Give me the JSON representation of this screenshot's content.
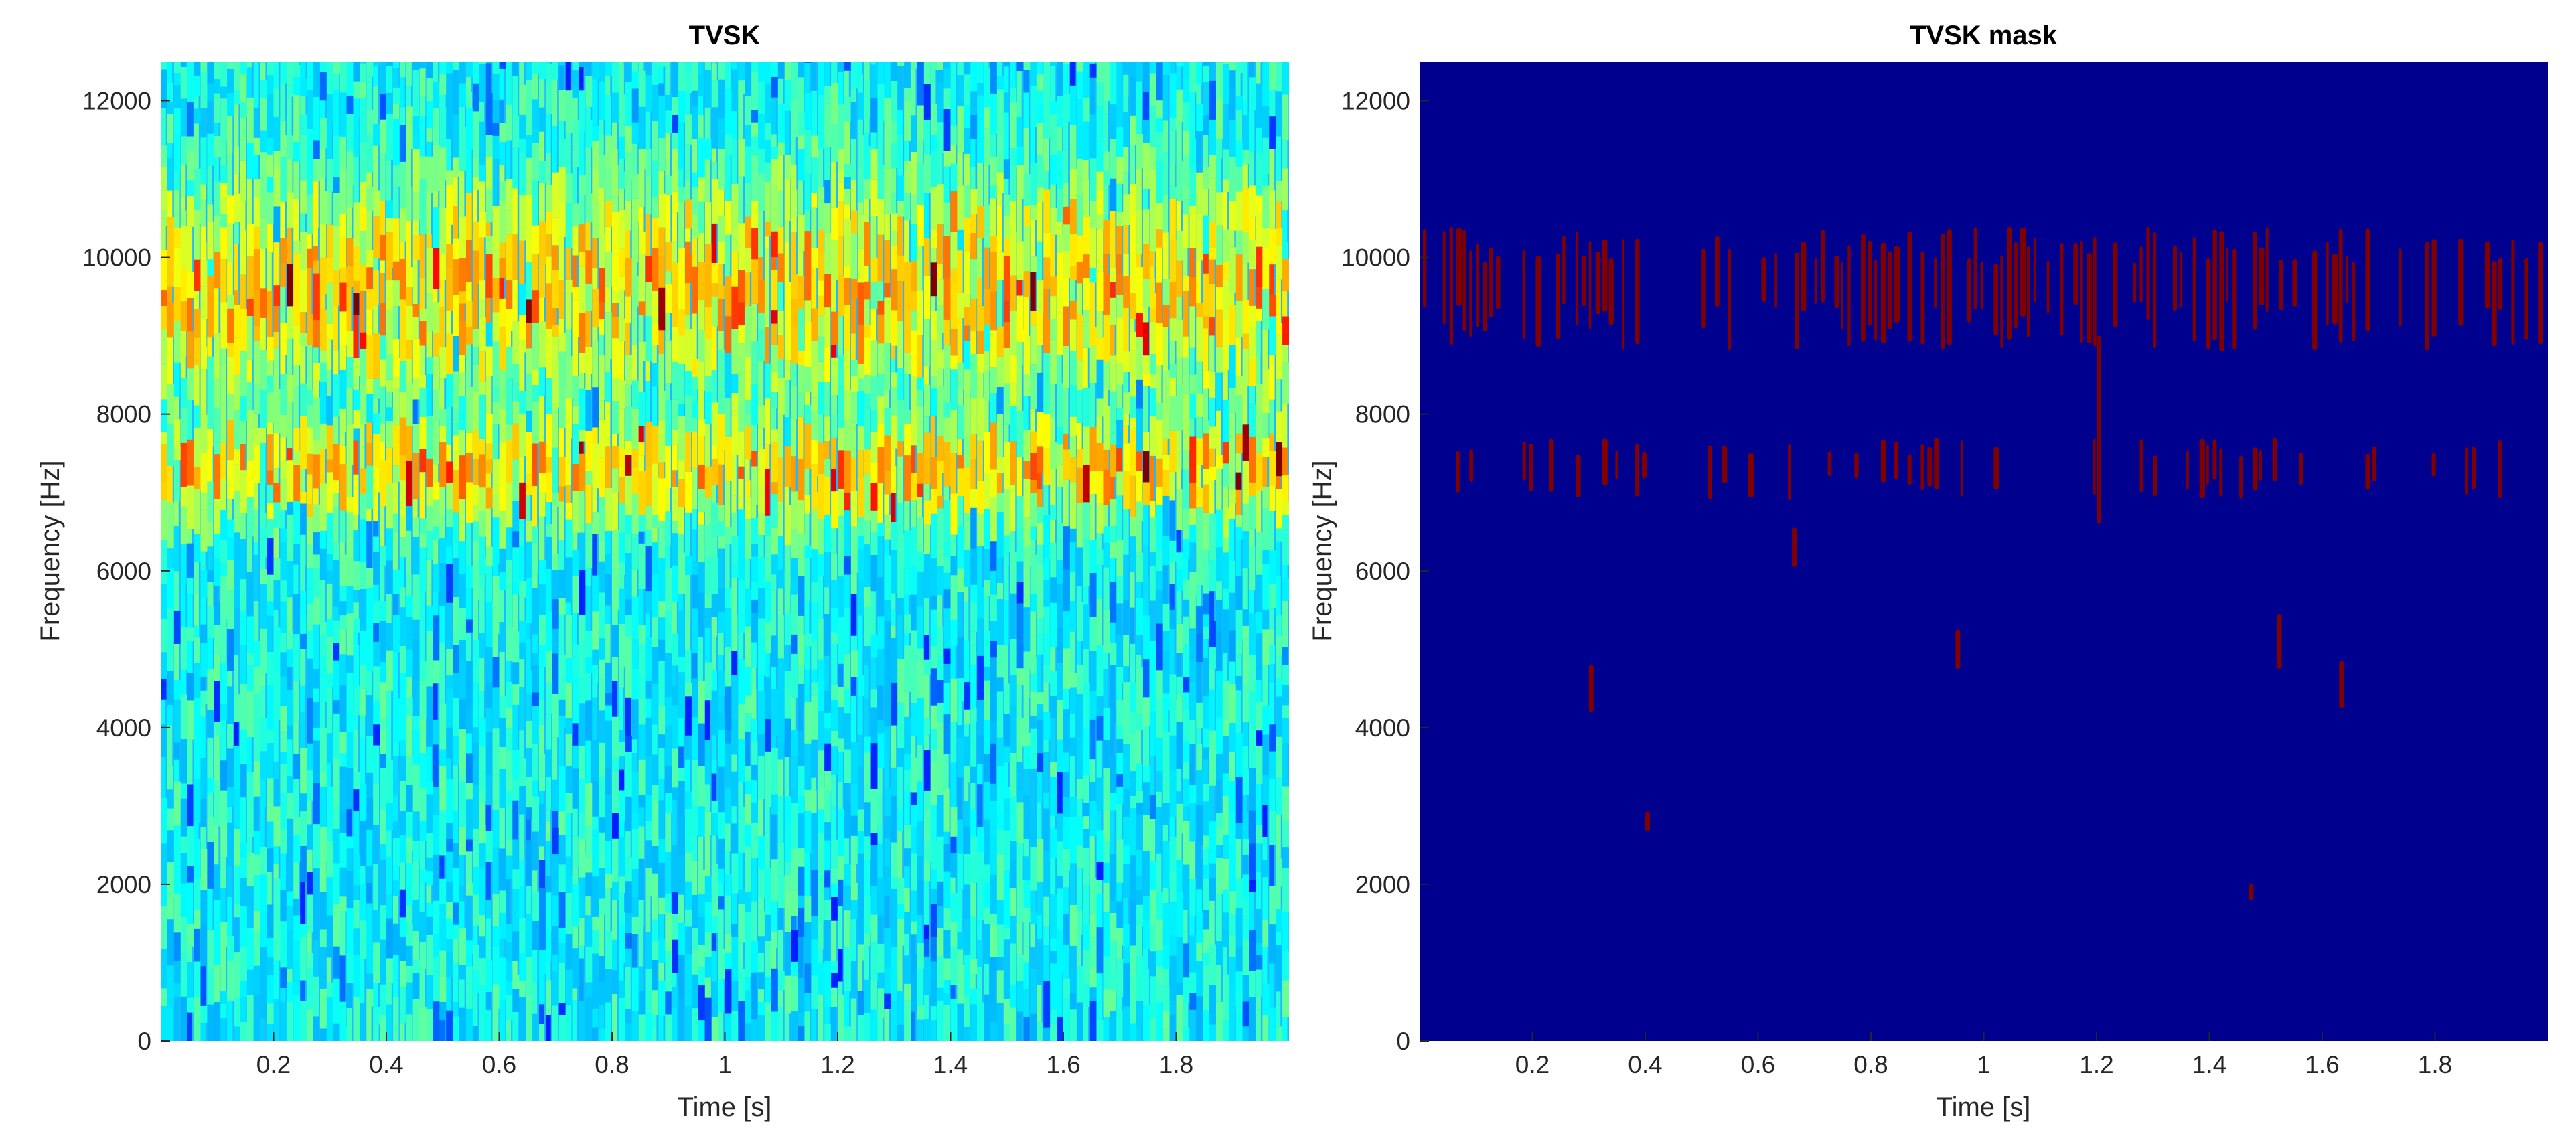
{
  "chart_data": [
    {
      "type": "heatmap",
      "title": "TVSK",
      "xlabel": "Time [s]",
      "ylabel": "Frequency [Hz]",
      "xlim": [
        0.0,
        2.0
      ],
      "ylim": [
        0,
        12500
      ],
      "xticks": [
        0.2,
        0.4,
        0.6,
        0.8,
        1.0,
        1.2,
        1.4,
        1.6,
        1.8
      ],
      "xtick_labels": [
        "0.2",
        "0.4",
        "0.6",
        "0.8",
        "1",
        "1.2",
        "1.4",
        "1.6",
        "1.8"
      ],
      "yticks": [
        0,
        2000,
        4000,
        6000,
        8000,
        10000,
        12000
      ],
      "ytick_labels": [
        "0",
        "2000",
        "4000",
        "6000",
        "8000",
        "10000",
        "12000"
      ],
      "colormap": "jet",
      "high_intensity_bands_hz": [
        [
          8800,
          10400
        ],
        [
          6900,
          7700
        ]
      ],
      "grid": false,
      "legend": false
    },
    {
      "type": "heatmap",
      "title": "TVSK mask",
      "xlabel": "Time [s]",
      "ylabel": "Frequency [Hz]",
      "xlim": [
        0.0,
        2.0
      ],
      "ylim": [
        0,
        12500
      ],
      "xticks": [
        0.2,
        0.4,
        0.6,
        0.8,
        1.0,
        1.2,
        1.4,
        1.6,
        1.8
      ],
      "xtick_labels": [
        "0.2",
        "0.4",
        "0.6",
        "0.8",
        "1",
        "1.2",
        "1.4",
        "1.6",
        "1.8"
      ],
      "yticks": [
        0,
        2000,
        4000,
        6000,
        8000,
        10000,
        12000
      ],
      "ytick_labels": [
        "0",
        "2000",
        "4000",
        "6000",
        "8000",
        "10000",
        "12000"
      ],
      "colormap": "binary mask (0 = dark blue, 1 = dark red)",
      "background_color": "#00008f",
      "mask_color": "#800000",
      "mask_bands_hz": [
        [
          8800,
          10400
        ],
        [
          6900,
          7700
        ]
      ],
      "grid": false,
      "legend": false
    }
  ]
}
